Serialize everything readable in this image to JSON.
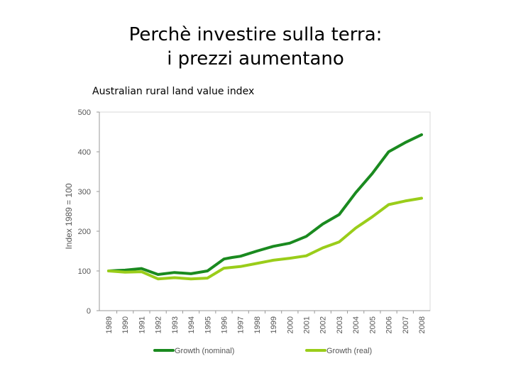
{
  "slide": {
    "title_line1": "Perchè investire sulla terra:",
    "title_line2": "i prezzi aumentano",
    "caption": "Australian rural land value index"
  },
  "colors": {
    "nominal": "#1a8a1f",
    "real": "#9acd1a",
    "gridline": "#cccccc",
    "axis": "#999999"
  },
  "chart_data": {
    "type": "line",
    "title": "Australian rural land value index",
    "xlabel": "",
    "ylabel": "Index 1989 = 100",
    "ylim": [
      0,
      500
    ],
    "yticks": [
      0,
      100,
      200,
      300,
      400,
      500
    ],
    "grid": false,
    "legend_position": "bottom",
    "x": [
      "1989",
      "1990",
      "1991",
      "1992",
      "1993",
      "1994",
      "1995",
      "1996",
      "1997",
      "1998",
      "1999",
      "2000",
      "2001",
      "2002",
      "2003",
      "2004",
      "2005",
      "2006",
      "2007",
      "2008"
    ],
    "series": [
      {
        "name": "Growth (nominal)",
        "color_key": "nominal",
        "points": [
          [
            "1989",
            100
          ],
          [
            "1989.5",
            101
          ],
          [
            "1990",
            102
          ],
          [
            "1990.5",
            104
          ],
          [
            "1991",
            106
          ],
          [
            "1992",
            91
          ],
          [
            "1993",
            96
          ],
          [
            "1994",
            93
          ],
          [
            "1995",
            100
          ],
          [
            "1996",
            130
          ],
          [
            "1996.5",
            134
          ],
          [
            "1997",
            137
          ],
          [
            "1998",
            150
          ],
          [
            "1999",
            162
          ],
          [
            "2000",
            170
          ],
          [
            "2001",
            187
          ],
          [
            "2002",
            218
          ],
          [
            "2003",
            242
          ],
          [
            "2004",
            297
          ],
          [
            "2005",
            345
          ],
          [
            "2006",
            400
          ],
          [
            "2007",
            423
          ],
          [
            "2008",
            443
          ]
        ]
      },
      {
        "name": "Growth (real)",
        "color_key": "real",
        "points": [
          [
            "1989",
            100
          ],
          [
            "1990",
            97
          ],
          [
            "1991",
            98
          ],
          [
            "1992",
            80
          ],
          [
            "1993",
            83
          ],
          [
            "1994",
            80
          ],
          [
            "1995",
            82
          ],
          [
            "1996",
            107
          ],
          [
            "1997",
            111
          ],
          [
            "1998",
            119
          ],
          [
            "1999",
            127
          ],
          [
            "2000",
            132
          ],
          [
            "2001",
            138
          ],
          [
            "2002",
            158
          ],
          [
            "2003",
            173
          ],
          [
            "2004",
            208
          ],
          [
            "2005",
            236
          ],
          [
            "2006",
            267
          ],
          [
            "2007",
            276
          ],
          [
            "2008",
            283
          ]
        ]
      }
    ]
  }
}
